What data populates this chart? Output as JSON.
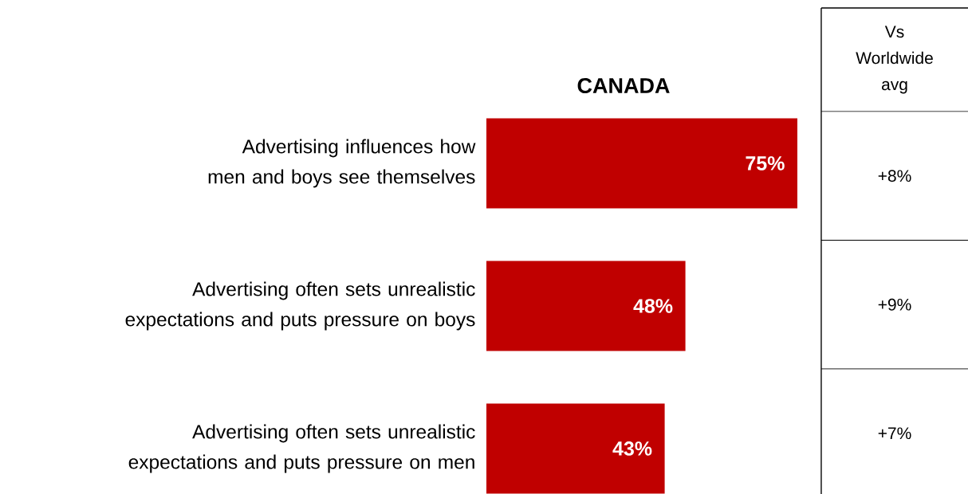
{
  "chart_data": [
    {
      "type": "bar",
      "orientation": "horizontal",
      "title": "CANADA",
      "categories": [
        "Advertising influences how men and boys see themselves",
        "Advertising often sets unrealistic expectations and puts pressure on boys",
        "Advertising often sets unrealistic expectations and puts pressure on men"
      ],
      "values": [
        75,
        48,
        43
      ],
      "value_labels": [
        "75%",
        "48%",
        "43%"
      ],
      "color": "#c00000"
    },
    {
      "type": "other",
      "title": "Vs Worldwide avg",
      "annotations": [
        "+8%",
        "+9%",
        "+7%"
      ]
    }
  ]
}
